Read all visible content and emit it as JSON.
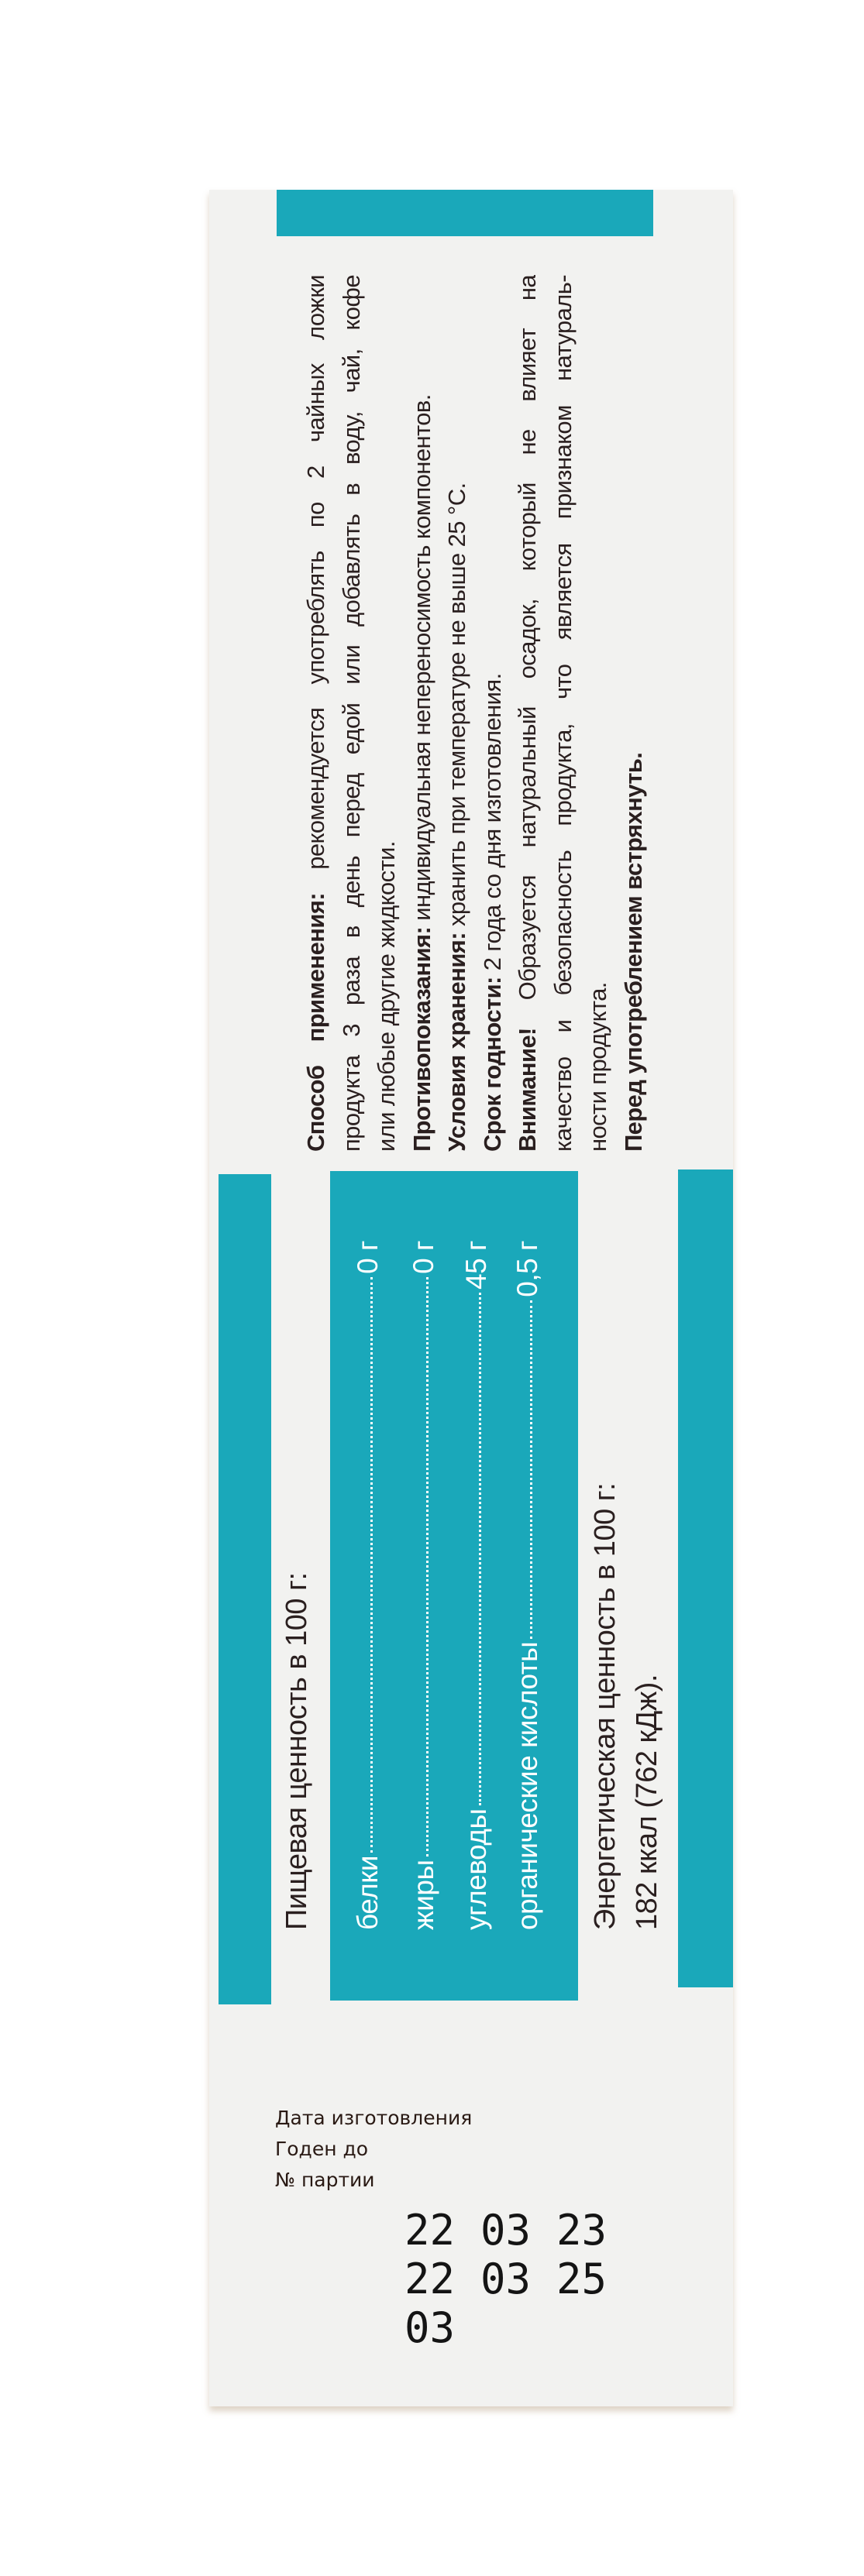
{
  "colors": {
    "accent": "#1aa8ba",
    "box": "#f2f2f0",
    "text": "#2a1f1f"
  },
  "instructions": {
    "usage_label": "Способ применения:",
    "usage_line1": " рекомендуется употреблять по 2 чайных ложки",
    "usage_line2": "продукта 3 раза в день перед едой или добавлять в воду, чай, кофе",
    "usage_line3": "или любые другие жидкости.",
    "contra_label": "Противопоказания:",
    "contra_text": " индивидуальная непереносимость компонентов.",
    "storage_label": "Условия хранения:",
    "storage_text": " хранить при температуре не выше 25 °С.",
    "shelf_label": "Срок годности:",
    "shelf_text": " 2 года со дня изготовления.",
    "warning_label": "Внимание!",
    "warning_line1": " Образуется натуральный осадок, который не влияет на",
    "warning_line2": "качество и безопасность продукта, что является признаком натураль-",
    "warning_line3": "ности продукта.",
    "shake": "Перед употреблением встряхнуть."
  },
  "nutrition": {
    "heading": "Пищевая ценность в 100 г:",
    "rows": [
      {
        "label": "белки",
        "value": "0 г"
      },
      {
        "label": "жиры",
        "value": "0 г"
      },
      {
        "label": "углеводы",
        "value": "45 г"
      },
      {
        "label": "органические кислоты",
        "value": "0,5 г"
      }
    ],
    "energy_line1": "Энергетическая ценность в 100 г:",
    "energy_line2": "182 ккал (762 кДж)."
  },
  "production": {
    "date_label": "Дата изготовления",
    "expiry_label": "Годен до",
    "batch_label": "№ партии",
    "date_code": [
      "22",
      "03",
      "23"
    ],
    "expiry_code": [
      "22",
      "03",
      "25"
    ],
    "batch_code": [
      "03"
    ]
  }
}
